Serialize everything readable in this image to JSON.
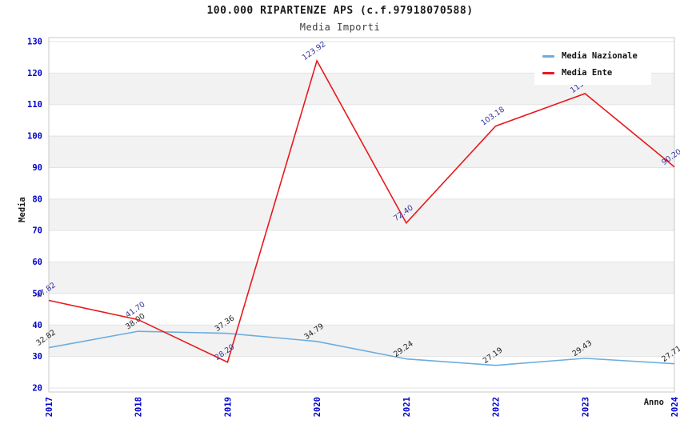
{
  "header": {
    "title": "100.000 RIPARTENZE APS (c.f.97918070588)",
    "subtitle": "Media Importi"
  },
  "chart_data": {
    "type": "line",
    "title": "100.000 RIPARTENZE APS (c.f.97918070588)",
    "subtitle": "Media Importi",
    "xlabel": "Anno",
    "ylabel": "Media",
    "categories": [
      "2017",
      "2018",
      "2019",
      "2020",
      "2021",
      "2022",
      "2023",
      "2024"
    ],
    "ylim": [
      20,
      130
    ],
    "ytick_step": 10,
    "grid": true,
    "band_fill": true,
    "legend_position": "top-right",
    "series": [
      {
        "name": "Media Nazionale",
        "color": "#6cadde",
        "label_color": "#1f1f1f",
        "values": [
          32.82,
          38.0,
          37.36,
          34.79,
          29.24,
          27.19,
          29.43,
          27.71
        ],
        "labels": [
          "32.82",
          "38.00",
          "37.36",
          "34.79",
          "29.24",
          "27.19",
          "29.43",
          "27.71"
        ]
      },
      {
        "name": "Media Ente",
        "color": "#e8191d",
        "label_color": "#3434a0",
        "values": [
          47.82,
          41.7,
          28.2,
          123.92,
          72.4,
          103.18,
          113.5,
          90.2
        ],
        "labels": [
          "47.82",
          "41.70",
          "28.20",
          "123.92",
          "72.40",
          "103.18",
          "113.50",
          "90.20"
        ]
      }
    ]
  },
  "axis_style": {
    "tick_label_color": "#0000cc",
    "gridline_color": "#e3e3e3",
    "band_color": "#f2f2f2",
    "border_color": "#c9c9c9"
  }
}
